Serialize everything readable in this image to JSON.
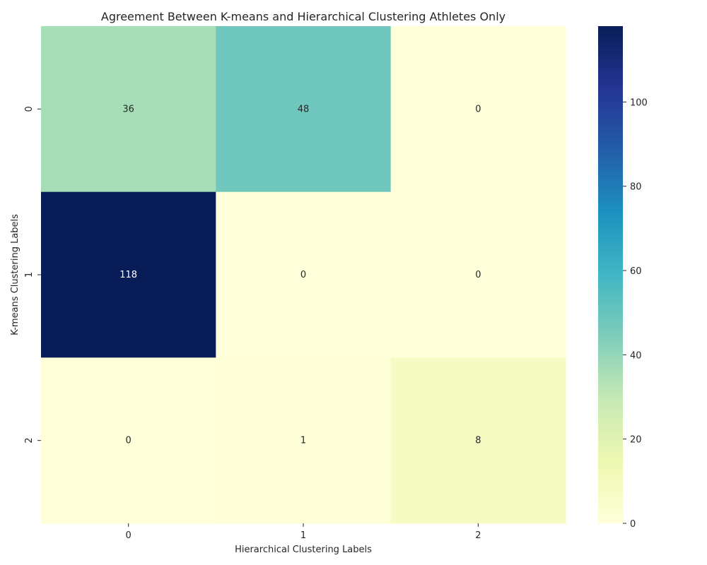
{
  "chart_data": {
    "type": "heatmap",
    "title": "Agreement Between K-means and Hierarchical Clustering Athletes Only",
    "xlabel": "Hierarchical Clustering Labels",
    "ylabel": "K-means Clustering Labels",
    "x_categories": [
      "0",
      "1",
      "2"
    ],
    "y_categories": [
      "0",
      "1",
      "2"
    ],
    "values": [
      [
        36,
        48,
        0
      ],
      [
        118,
        0,
        0
      ],
      [
        0,
        1,
        8
      ]
    ],
    "colorbar": {
      "colormap": "YlGnBu",
      "range": [
        0,
        118
      ],
      "ticks": [
        0,
        20,
        40,
        60,
        80,
        100
      ]
    },
    "grid": false
  }
}
